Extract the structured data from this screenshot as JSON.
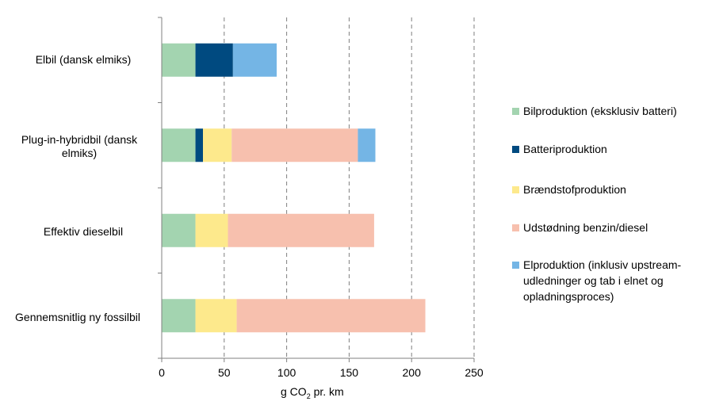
{
  "chart_data": {
    "type": "bar",
    "orientation": "horizontal",
    "stacked": true,
    "categories": [
      "Elbil (dansk elmiks)",
      "Plug-in-hybridbil (dansk elmiks)",
      "Effektiv dieselbil",
      "Gennemsnitlig ny fossilbil"
    ],
    "series": [
      {
        "name": "Bilproduktion (eksklusiv batteri)",
        "color": "#a3d4b0",
        "values": [
          27,
          27,
          27,
          27
        ]
      },
      {
        "name": "Batteriproduktion",
        "color": "#004a80",
        "values": [
          30,
          6,
          0,
          0
        ]
      },
      {
        "name": "Brændstofproduktion",
        "color": "#fde98c",
        "values": [
          0,
          23,
          26,
          33
        ]
      },
      {
        "name": "Udstødning benzin/diesel",
        "color": "#f7c0ae",
        "values": [
          0,
          101,
          117,
          151
        ]
      },
      {
        "name": "Elproduktion (inklusiv upstream-udledninger og tab i elnet og opladningsproces)",
        "color": "#74b5e5",
        "values": [
          35,
          14,
          0,
          0
        ]
      }
    ],
    "xlabel_main": "g CO",
    "xlabel_sub": "2",
    "xlabel_rest": " pr. km",
    "xticks": [
      "0",
      "50",
      "100",
      "150",
      "200",
      "250"
    ],
    "xlim": [
      0,
      250
    ],
    "grid": "vertical-dashed",
    "legend_position": "right"
  },
  "labels": {
    "cat0": "Elbil (dansk elmiks)",
    "cat1a": "Plug-in-hybridbil (dansk",
    "cat1b": "elmiks)",
    "cat2": "Effektiv dieselbil",
    "cat3": "Gennemsnitlig ny fossilbil",
    "leg0": "Bilproduktion (eksklusiv batteri)",
    "leg1": "Batteriproduktion",
    "leg2": "Brændstofproduktion",
    "leg3": "Udstødning benzin/diesel",
    "leg4a": "Elproduktion (inklusiv upstream-",
    "leg4b": "udledninger og tab i elnet og",
    "leg4c": "opladningsproces)"
  }
}
